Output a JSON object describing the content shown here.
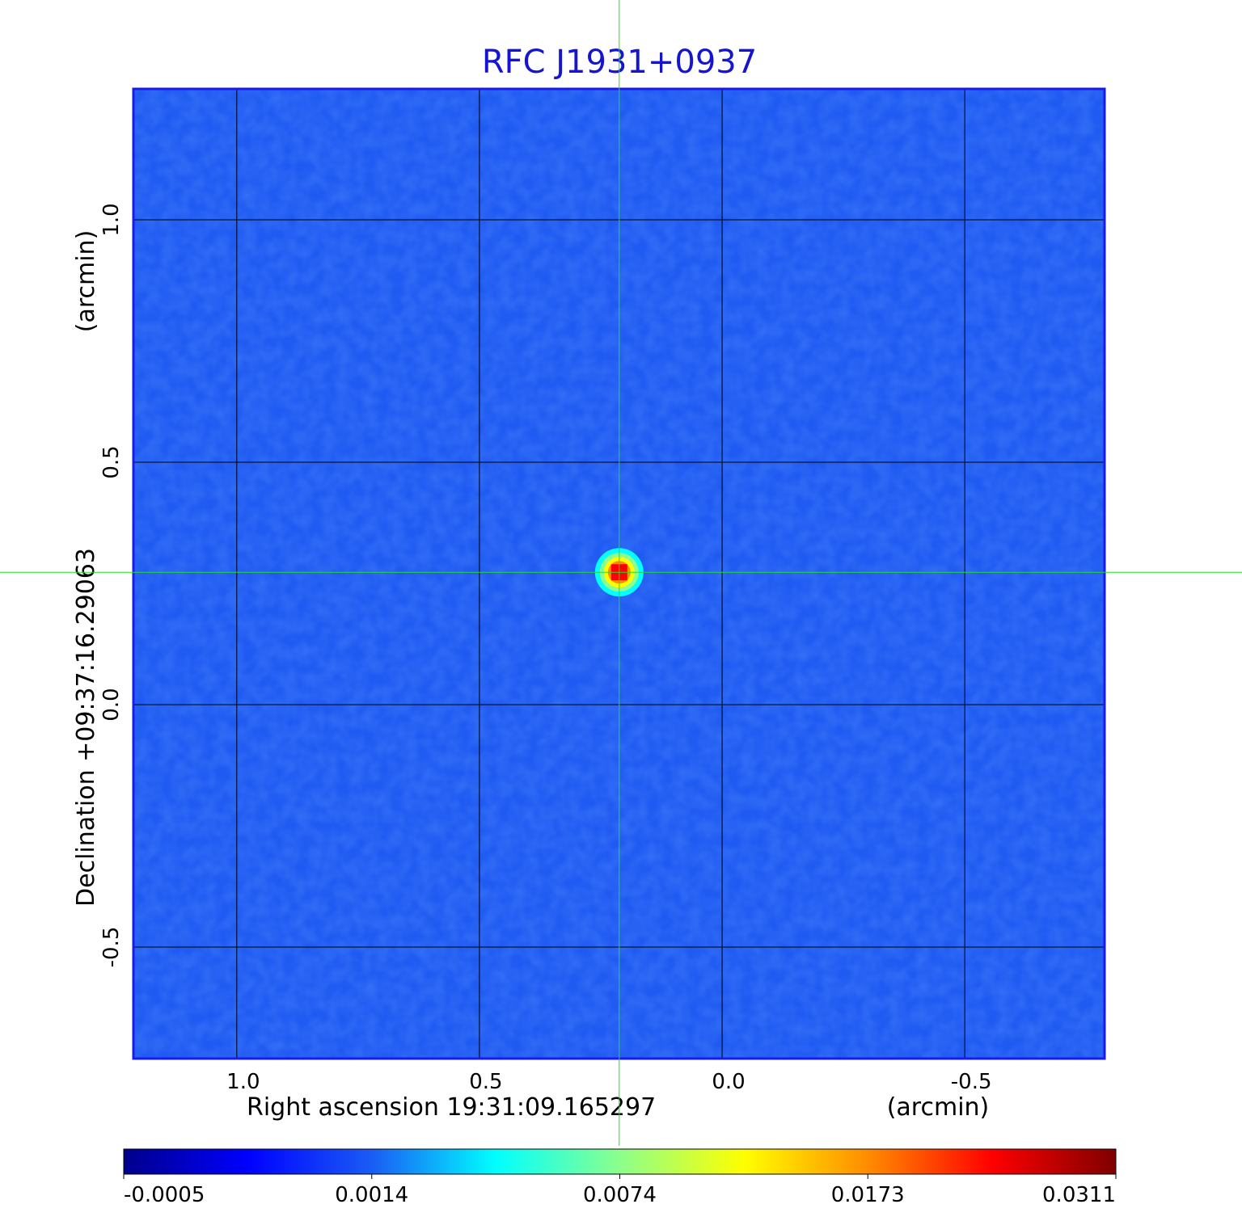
{
  "chart_data": {
    "type": "image",
    "title": "RFC J1931+0937",
    "xlabel": "Right ascension  19:31:09.165297",
    "xunit": "(arcmin)",
    "ylabel": "Declination  +09:37:16.29063",
    "yunit": "(arcmin)",
    "xlim": [
      1.213,
      -0.788
    ],
    "ylim": [
      -0.73,
      1.27
    ],
    "xticks": [
      {
        "value": 1,
        "label": "1.0"
      },
      0.5,
      {
        "value": 0,
        "label": "0.0"
      },
      -0.5
    ],
    "yticks": [
      -0.5,
      {
        "value": 0,
        "label": "0.0"
      },
      0.5,
      {
        "value": 1,
        "label": "1.0"
      }
    ],
    "grid": true,
    "background_color": "#1f5af2",
    "sources": [
      {
        "x": 0.212,
        "y": 0.273,
        "peak": 0.0311
      }
    ],
    "colorbar_ticks": [
      -0.0005,
      0.0014,
      0.0074,
      0.0173,
      0.0311
    ],
    "colormap": [
      "#00008c",
      "#0000ff",
      "#1a5cf5",
      "#00ffff",
      "#8cff8c",
      "#ffff00",
      "#ff8c00",
      "#ff0000",
      "#800000"
    ]
  }
}
